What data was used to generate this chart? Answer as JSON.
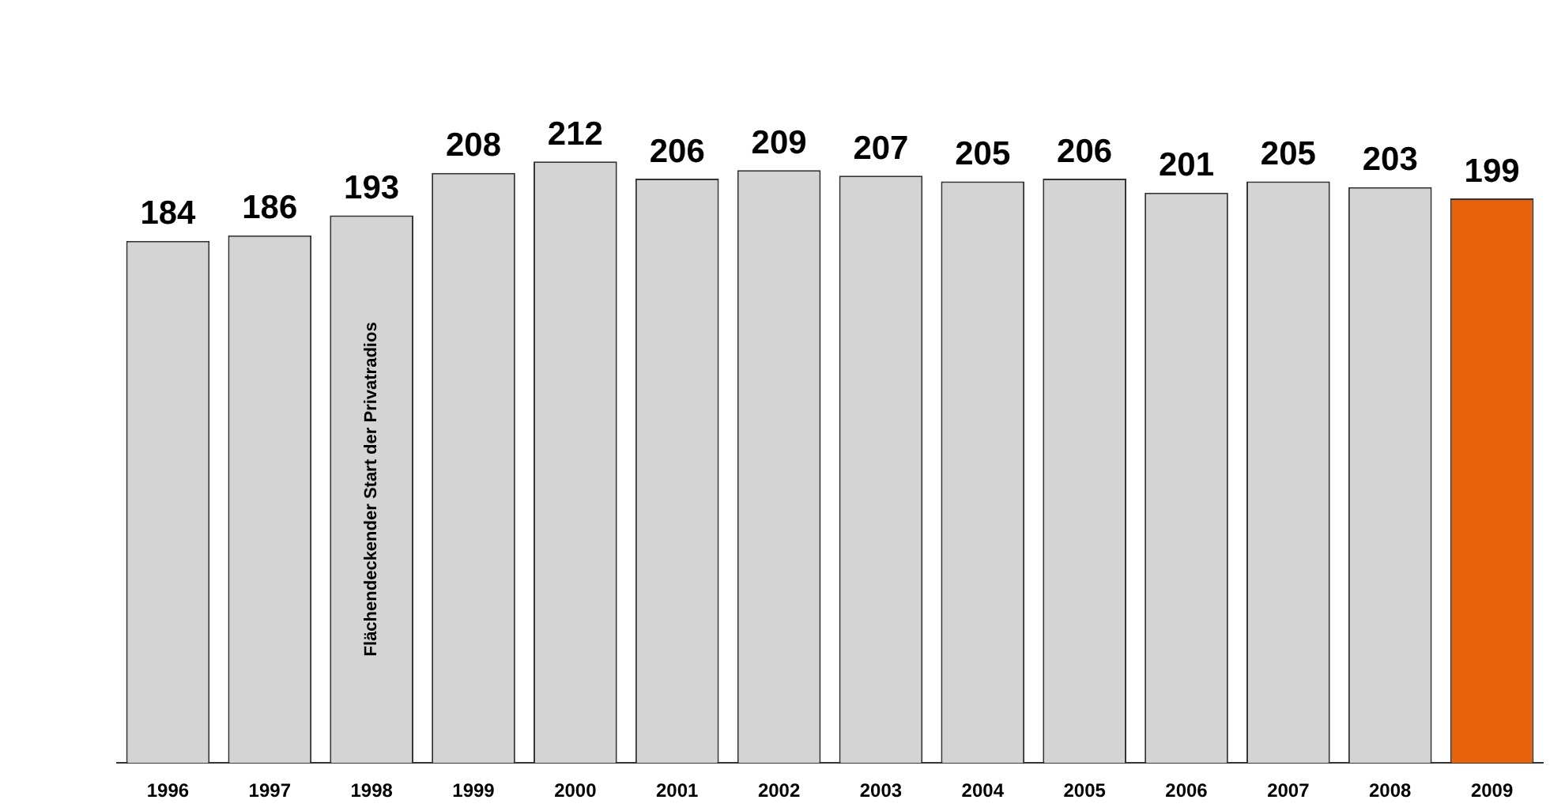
{
  "chart_data": {
    "type": "bar",
    "categories": [
      "1996",
      "1997",
      "1998",
      "1999",
      "2000",
      "2001",
      "2002",
      "2003",
      "2004",
      "2005",
      "2006",
      "2007",
      "2008",
      "2009"
    ],
    "values": [
      184,
      186,
      193,
      208,
      212,
      206,
      209,
      207,
      205,
      206,
      201,
      205,
      203,
      199
    ],
    "colors": [
      "#d4d4d4",
      "#d4d4d4",
      "#d4d4d4",
      "#d4d4d4",
      "#d4d4d4",
      "#d4d4d4",
      "#d4d4d4",
      "#d4d4d4",
      "#d4d4d4",
      "#d4d4d4",
      "#d4d4d4",
      "#d4d4d4",
      "#d4d4d4",
      "#e8620c"
    ],
    "tick_labels": "x",
    "data_labels": true,
    "grid": false,
    "legend": false,
    "annotations": [
      "Flächendeckender Start der Privatradios"
    ]
  }
}
